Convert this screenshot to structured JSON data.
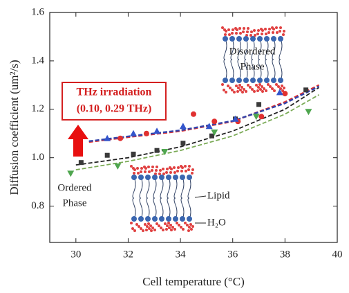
{
  "chart_data": {
    "type": "scatter",
    "xlabel": "Cell temperature (°C)",
    "ylabel": "Diffusion coefficient (um²/s)",
    "xlim": [
      29,
      40
    ],
    "xticks": [
      30,
      32,
      34,
      36,
      38,
      40
    ],
    "ylim": [
      0.65,
      1.6
    ],
    "yticks": [
      0.8,
      {
        "value": 1.0,
        "label": "1.0"
      },
      1.2,
      1.4,
      1.6
    ],
    "series": [
      {
        "marker": "square",
        "color": "#3a3a3a",
        "x": [
          30.2,
          31.2,
          32.2,
          33.1,
          34.1,
          35.2,
          36.1,
          37.0,
          38.8
        ],
        "values": [
          0.98,
          1.01,
          1.015,
          1.03,
          1.06,
          1.09,
          1.16,
          1.22,
          1.28
        ]
      },
      {
        "marker": "triangle-down",
        "color": "#4fa64f",
        "x": [
          29.8,
          31.6,
          33.4,
          35.3,
          36.9,
          38.9
        ],
        "values": [
          0.935,
          0.965,
          1.025,
          1.105,
          1.17,
          1.19
        ]
      },
      {
        "marker": "circle",
        "color": "#e03030",
        "x": [
          31.7,
          32.7,
          34.5,
          35.3,
          36.2,
          37.1,
          38.0
        ],
        "values": [
          1.08,
          1.1,
          1.18,
          1.15,
          1.15,
          1.17,
          1.265
        ]
      },
      {
        "marker": "triangle-up",
        "color": "#3355cc",
        "x": [
          31.2,
          32.2,
          33.1,
          34.1,
          35.1,
          36.1,
          37.8
        ],
        "values": [
          1.08,
          1.1,
          1.11,
          1.13,
          1.13,
          1.16,
          1.27
        ]
      }
    ],
    "fits": [
      {
        "color": "#222222",
        "x": [
          30.0,
          32.0,
          34.0,
          36.0,
          38.0,
          39.3
        ],
        "values": [
          0.97,
          1.0,
          1.045,
          1.11,
          1.2,
          1.29
        ]
      },
      {
        "color": "#7aaa55",
        "x": [
          30.0,
          32.0,
          34.0,
          36.0,
          38.0,
          39.3
        ],
        "values": [
          0.95,
          0.985,
          1.03,
          1.09,
          1.18,
          1.26
        ]
      },
      {
        "color": "#e03030",
        "x": [
          30.5,
          32.0,
          34.0,
          36.0,
          38.0,
          39.3
        ],
        "values": [
          1.065,
          1.085,
          1.11,
          1.15,
          1.23,
          1.3
        ]
      },
      {
        "color": "#3344aa",
        "x": [
          30.5,
          32.0,
          34.0,
          36.0,
          38.0,
          39.3
        ],
        "values": [
          1.068,
          1.088,
          1.113,
          1.152,
          1.225,
          1.295
        ]
      }
    ],
    "annotations": {
      "disordered": [
        "Disordered",
        "Phase"
      ],
      "thz": [
        "THz irradiation",
        "(0.10, 0.29 THz)"
      ],
      "ordered": [
        "Ordered",
        "Phase"
      ],
      "lipid": "Lipid",
      "water": "H₂O"
    }
  }
}
